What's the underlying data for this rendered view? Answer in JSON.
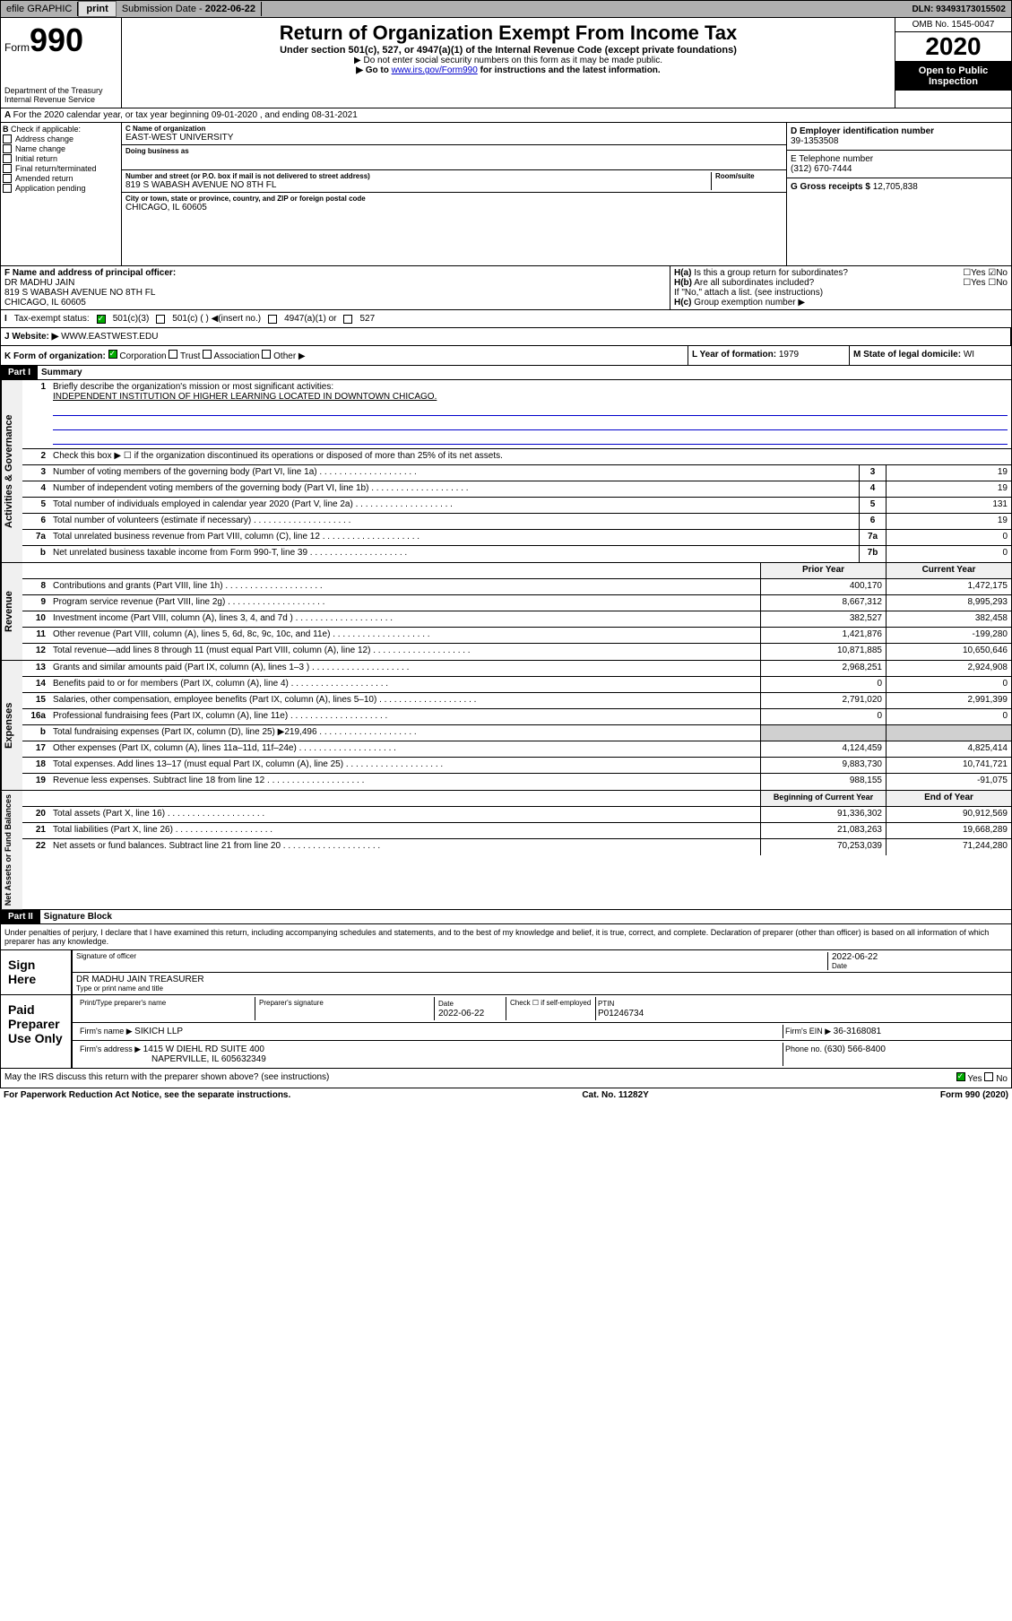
{
  "topbar": {
    "efile": "efile GRAPHIC",
    "print": "print",
    "subdate_label": "Submission Date - ",
    "subdate": "2022-06-22",
    "dln_label": "DLN: ",
    "dln": "93493173015502"
  },
  "header": {
    "form_word": "Form",
    "form_num": "990",
    "dept": "Department of the Treasury",
    "irs": "Internal Revenue Service",
    "title": "Return of Organization Exempt From Income Tax",
    "subtitle": "Under section 501(c), 527, or 4947(a)(1) of the Internal Revenue Code (except private foundations)",
    "note1": "▶ Do not enter social security numbers on this form as it may be made public.",
    "note2_pre": "▶ Go to ",
    "note2_link": "www.irs.gov/Form990",
    "note2_post": " for instructions and the latest information.",
    "omb": "OMB No. 1545-0047",
    "year": "2020",
    "open": "Open to Public Inspection"
  },
  "sectionA": "For the 2020 calendar year, or tax year beginning 09-01-2020    , and ending 08-31-2021",
  "colB": {
    "label": "Check if applicable:",
    "items": [
      "Address change",
      "Name change",
      "Initial return",
      "Final return/terminated",
      "Amended return",
      "Application pending"
    ]
  },
  "colC": {
    "name_label": "C Name of organization",
    "name": "EAST-WEST UNIVERSITY",
    "dba_label": "Doing business as",
    "addr_label": "Number and street (or P.O. box if mail is not delivered to street address)",
    "room_label": "Room/suite",
    "addr": "819 S WABASH AVENUE NO 8TH FL",
    "city_label": "City or town, state or province, country, and ZIP or foreign postal code",
    "city": "CHICAGO, IL  60605"
  },
  "colD": {
    "label": "D Employer identification number",
    "val": "39-1353508"
  },
  "colE": {
    "label": "E Telephone number",
    "val": "(312) 670-7444"
  },
  "colG": {
    "label": "G Gross receipts $ ",
    "val": "12,705,838"
  },
  "colF": {
    "label": "F  Name and address of principal officer:",
    "name": "DR MADHU JAIN",
    "addr": "819 S WABASH AVENUE NO 8TH FL",
    "city": "CHICAGO, IL  60605"
  },
  "colH": {
    "a": "Is this a group return for subordinates?",
    "b": "Are all subordinates included?",
    "note": "If \"No,\" attach a list. (see instructions)",
    "c": "Group exemption number ▶"
  },
  "rowI": {
    "label": "Tax-exempt status:",
    "opts": [
      "501(c)(3)",
      "501(c) (  ) ◀(insert no.)",
      "4947(a)(1) or",
      "527"
    ]
  },
  "rowJ": {
    "label": "Website: ▶",
    "val": "WWW.EASTWEST.EDU"
  },
  "rowK": {
    "label": "K Form of organization:",
    "opts": [
      "Corporation",
      "Trust",
      "Association",
      "Other ▶"
    ]
  },
  "rowL": {
    "label": "L Year of formation: ",
    "val": "1979"
  },
  "rowM": {
    "label": "M State of legal domicile: ",
    "val": "WI"
  },
  "part1": {
    "header": "Part I",
    "title": "Summary",
    "vert_gov": "Activities & Governance",
    "vert_rev": "Revenue",
    "vert_exp": "Expenses",
    "vert_net": "Net Assets or Fund Balances",
    "line1_label": "Briefly describe the organization's mission or most significant activities:",
    "line1_val": "INDEPENDENT INSTITUTION OF HIGHER LEARNING LOCATED IN DOWNTOWN CHICAGO.",
    "line2": "Check this box ▶ ☐  if the organization discontinued its operations or disposed of more than 25% of its net assets.",
    "rows_gov": [
      {
        "n": "3",
        "label": "Number of voting members of the governing body (Part VI, line 1a)",
        "box": "3",
        "val": "19"
      },
      {
        "n": "4",
        "label": "Number of independent voting members of the governing body (Part VI, line 1b)",
        "box": "4",
        "val": "19"
      },
      {
        "n": "5",
        "label": "Total number of individuals employed in calendar year 2020 (Part V, line 2a)",
        "box": "5",
        "val": "131"
      },
      {
        "n": "6",
        "label": "Total number of volunteers (estimate if necessary)",
        "box": "6",
        "val": "19"
      },
      {
        "n": "7a",
        "label": "Total unrelated business revenue from Part VIII, column (C), line 12",
        "box": "7a",
        "val": "0"
      },
      {
        "n": "b",
        "label": "Net unrelated business taxable income from Form 990-T, line 39",
        "box": "7b",
        "val": "0"
      }
    ],
    "col_prior": "Prior Year",
    "col_current": "Current Year",
    "rows_rev": [
      {
        "n": "8",
        "label": "Contributions and grants (Part VIII, line 1h)",
        "p": "400,170",
        "c": "1,472,175"
      },
      {
        "n": "9",
        "label": "Program service revenue (Part VIII, line 2g)",
        "p": "8,667,312",
        "c": "8,995,293"
      },
      {
        "n": "10",
        "label": "Investment income (Part VIII, column (A), lines 3, 4, and 7d )",
        "p": "382,527",
        "c": "382,458"
      },
      {
        "n": "11",
        "label": "Other revenue (Part VIII, column (A), lines 5, 6d, 8c, 9c, 10c, and 11e)",
        "p": "1,421,876",
        "c": "-199,280"
      },
      {
        "n": "12",
        "label": "Total revenue—add lines 8 through 11 (must equal Part VIII, column (A), line 12)",
        "p": "10,871,885",
        "c": "10,650,646"
      }
    ],
    "rows_exp": [
      {
        "n": "13",
        "label": "Grants and similar amounts paid (Part IX, column (A), lines 1–3 )",
        "p": "2,968,251",
        "c": "2,924,908"
      },
      {
        "n": "14",
        "label": "Benefits paid to or for members (Part IX, column (A), line 4)",
        "p": "0",
        "c": "0"
      },
      {
        "n": "15",
        "label": "Salaries, other compensation, employee benefits (Part IX, column (A), lines 5–10)",
        "p": "2,791,020",
        "c": "2,991,399"
      },
      {
        "n": "16a",
        "label": "Professional fundraising fees (Part IX, column (A), line 11e)",
        "p": "0",
        "c": "0"
      },
      {
        "n": "b",
        "label": "Total fundraising expenses (Part IX, column (D), line 25) ▶219,496",
        "p": "",
        "c": ""
      },
      {
        "n": "17",
        "label": "Other expenses (Part IX, column (A), lines 11a–11d, 11f–24e)",
        "p": "4,124,459",
        "c": "4,825,414"
      },
      {
        "n": "18",
        "label": "Total expenses. Add lines 13–17 (must equal Part IX, column (A), line 25)",
        "p": "9,883,730",
        "c": "10,741,721"
      },
      {
        "n": "19",
        "label": "Revenue less expenses. Subtract line 18 from line 12",
        "p": "988,155",
        "c": "-91,075"
      }
    ],
    "col_beg": "Beginning of Current Year",
    "col_end": "End of Year",
    "rows_net": [
      {
        "n": "20",
        "label": "Total assets (Part X, line 16)",
        "p": "91,336,302",
        "c": "90,912,569"
      },
      {
        "n": "21",
        "label": "Total liabilities (Part X, line 26)",
        "p": "21,083,263",
        "c": "19,668,289"
      },
      {
        "n": "22",
        "label": "Net assets or fund balances. Subtract line 21 from line 20",
        "p": "70,253,039",
        "c": "71,244,280"
      }
    ]
  },
  "part2": {
    "header": "Part II",
    "title": "Signature Block",
    "decl": "Under penalties of perjury, I declare that I have examined this return, including accompanying schedules and statements, and to the best of my knowledge and belief, it is true, correct, and complete. Declaration of preparer (other than officer) is based on all information of which preparer has any knowledge.",
    "sign_here": "Sign Here",
    "sig_officer": "Signature of officer",
    "sig_date_label": "Date",
    "sig_date": "2022-06-22",
    "sig_name": "DR MADHU JAIN  TREASURER",
    "sig_type": "Type or print name and title",
    "paid": "Paid Preparer Use Only",
    "prep_name_label": "Print/Type preparer's name",
    "prep_sig_label": "Preparer's signature",
    "prep_date_label": "Date",
    "prep_date": "2022-06-22",
    "prep_check": "Check ☐ if self-employed",
    "ptin_label": "PTIN",
    "ptin": "P01246734",
    "firm_name_label": "Firm's name  ▶ ",
    "firm_name": "SIKICH LLP",
    "firm_ein_label": "Firm's EIN ▶ ",
    "firm_ein": "36-3168081",
    "firm_addr_label": "Firm's address ▶ ",
    "firm_addr1": "1415 W DIEHL RD SUITE 400",
    "firm_addr2": "NAPERVILLE, IL  605632349",
    "phone_label": "Phone no. ",
    "phone": "(630) 566-8400",
    "discuss": "May the IRS discuss this return with the preparer shown above? (see instructions)",
    "yes": "Yes",
    "no": "No"
  },
  "footer": {
    "left": "For Paperwork Reduction Act Notice, see the separate instructions.",
    "mid": "Cat. No. 11282Y",
    "right": "Form 990 (2020)"
  }
}
